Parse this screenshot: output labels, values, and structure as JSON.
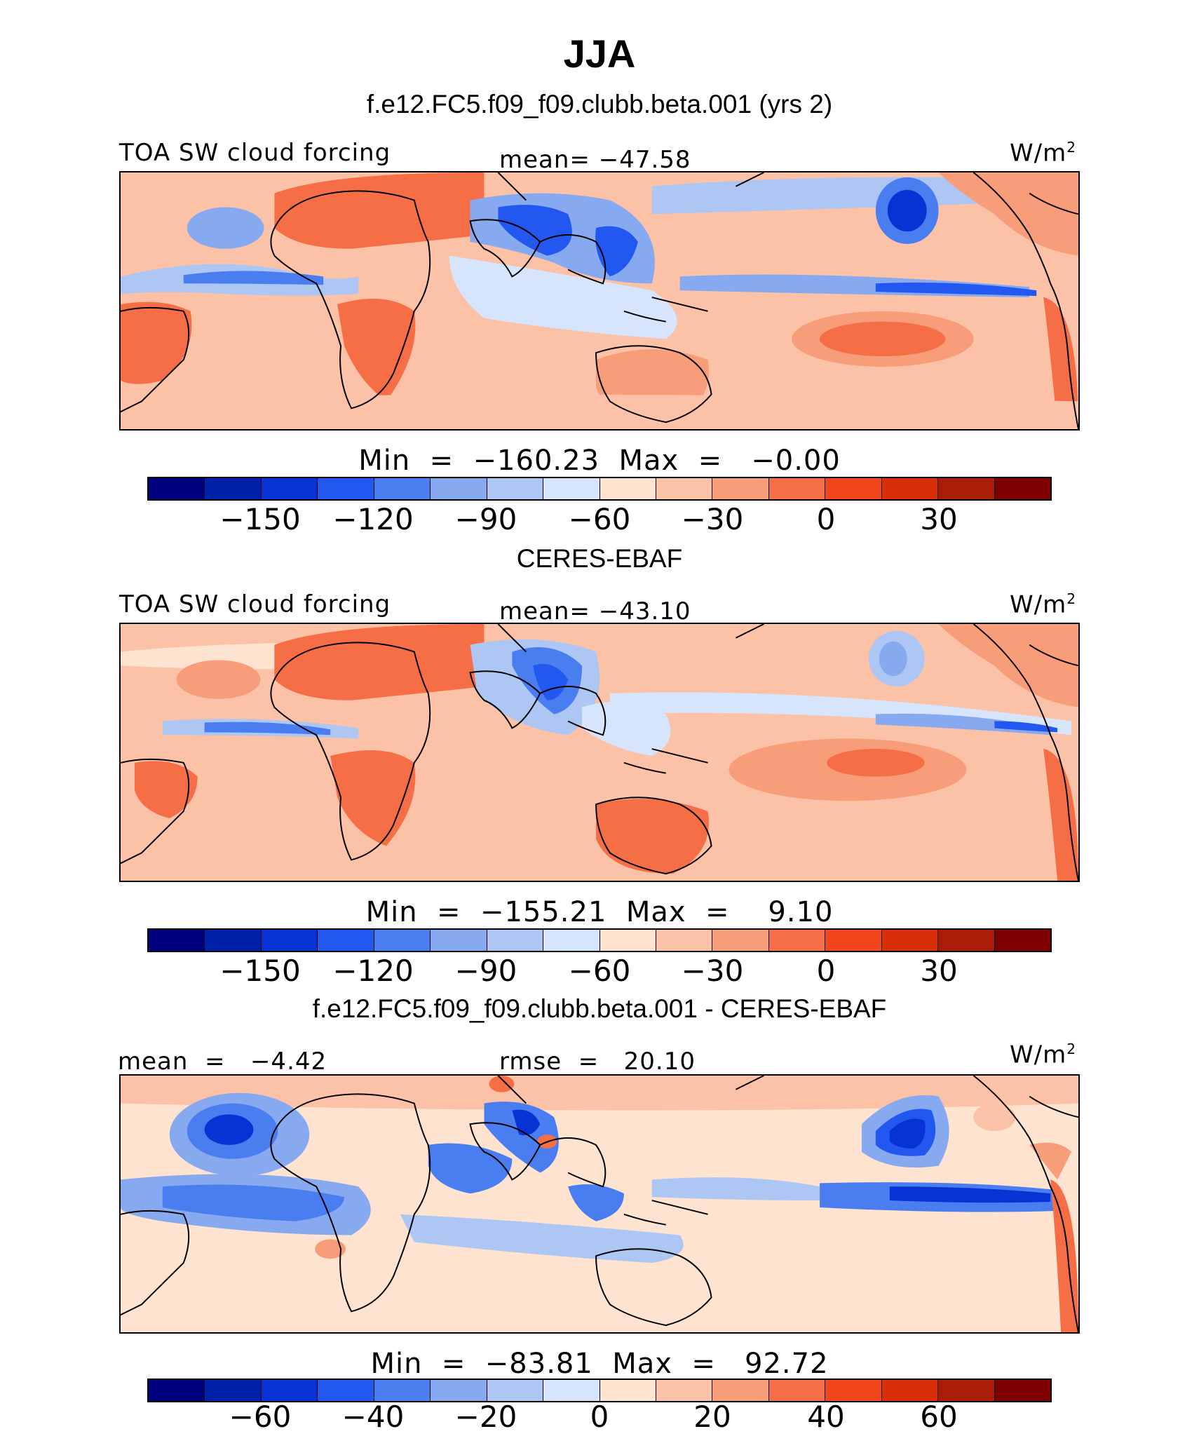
{
  "figure": {
    "title": "JJA"
  },
  "panels": [
    {
      "subtitle": "f.e12.FC5.f09_f09.clubb.beta.001 (yrs 2)",
      "left_label": "TOA SW cloud forcing",
      "center_label": "mean= −47.58",
      "units": "W/m",
      "units_sup": "2",
      "minmax": "Min  =  −160.23  Max  =   −0.00",
      "colorbar_ticks": [
        "−150",
        "−120",
        "−90",
        "−60",
        "−30",
        "0",
        "30"
      ]
    },
    {
      "subtitle": "CERES-EBAF",
      "left_label": "TOA SW cloud forcing",
      "center_label": "mean= −43.10",
      "units": "W/m",
      "units_sup": "2",
      "minmax": "Min  =  −155.21  Max  =    9.10",
      "colorbar_ticks": [
        "−150",
        "−120",
        "−90",
        "−60",
        "−30",
        "0",
        "30"
      ]
    },
    {
      "subtitle": "f.e12.FC5.f09_f09.clubb.beta.001 - CERES-EBAF",
      "left_label": "mean  =   −4.42",
      "center_label": "rmse  =   20.10",
      "units": "W/m",
      "units_sup": "2",
      "minmax": "Min  =  −83.81  Max  =   92.72",
      "colorbar_ticks": [
        "−60",
        "−40",
        "−20",
        "0",
        "20",
        "40",
        "60"
      ]
    }
  ],
  "colorbar_colors": [
    "#00007f",
    "#0022a8",
    "#0733d4",
    "#2257f0",
    "#4a7ef0",
    "#86a9f0",
    "#adc6f4",
    "#d6e5fb",
    "#fde3d0",
    "#fbc2a8",
    "#f89d7a",
    "#f56e46",
    "#f2461c",
    "#d92f08",
    "#a81c08",
    "#7f0000"
  ],
  "map_colors": {
    "ocean_light": "#fbc2a8",
    "warm": "#f56e46",
    "light_blue": "#adc6f4",
    "mid_blue": "#4a7ef0",
    "deep_blue": "#0733d4",
    "pale": "#fde3d0"
  }
}
